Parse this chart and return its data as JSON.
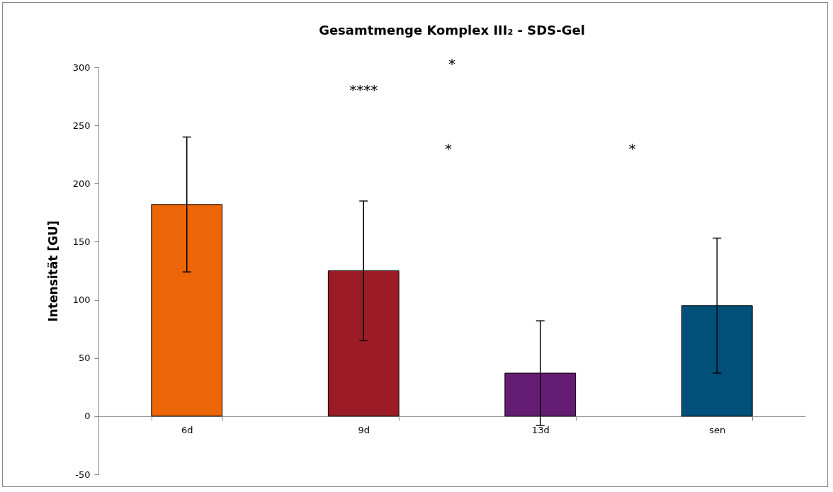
{
  "chart_data": {
    "type": "bar",
    "title": "Gesamtmenge Komplex III₂ - SDS-Gel",
    "ylabel": "Intensität [GU]",
    "categories": [
      "6d",
      "9d",
      "13d",
      "sen"
    ],
    "values": [
      182,
      125,
      37,
      95
    ],
    "colors": [
      "#ec6608",
      "#9b1c26",
      "#651d73",
      "#00507a"
    ],
    "errors": [
      58,
      60,
      45,
      58
    ],
    "ylim": [
      -50,
      300
    ],
    "yticks": [
      -50,
      0,
      50,
      100,
      150,
      200,
      250,
      300
    ],
    "grid": false,
    "legend": false,
    "annotations": [
      "*",
      "****",
      "*",
      "*"
    ]
  }
}
